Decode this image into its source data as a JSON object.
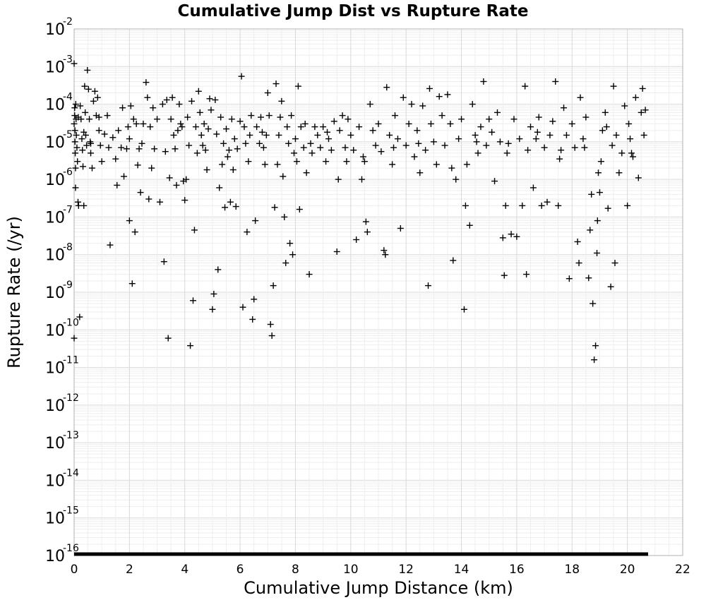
{
  "chart_data": {
    "type": "scatter",
    "title": "Cumulative Jump Dist vs Rupture Rate",
    "xlabel": "Cumulative Jump Distance (km)",
    "ylabel": "Rupture Rate (/yr)",
    "xlim": [
      0,
      22
    ],
    "ylim": [
      1e-16,
      0.01
    ],
    "y_scale": "log",
    "grid": true,
    "marker": "plus",
    "point_color": "#000000",
    "x_ticks": [
      "0",
      "2",
      "4",
      "6",
      "8",
      "10",
      "12",
      "14",
      "16",
      "18",
      "20",
      "22"
    ],
    "y_tick_base": "10",
    "y_tick_exponents": [
      "-2",
      "-3",
      "-4",
      "-5",
      "-6",
      "-7",
      "-8",
      "-9",
      "-10",
      "-11",
      "-12",
      "-13",
      "-14",
      "-15",
      "-16"
    ],
    "floor_line": {
      "y": 1e-16,
      "x_range": [
        0,
        20.75
      ]
    },
    "points": [
      [
        0.0,
        0.0012
      ],
      [
        0.0,
        3e-05
      ],
      [
        0.0,
        6e-11
      ],
      [
        0.02,
        8e-05
      ],
      [
        0.02,
        5e-05
      ],
      [
        0.03,
        2e-05
      ],
      [
        0.03,
        1e-05
      ],
      [
        0.04,
        5e-06
      ],
      [
        0.05,
        2e-06
      ],
      [
        0.05,
        6e-07
      ],
      [
        0.06,
        0.0001
      ],
      [
        0.07,
        4e-05
      ],
      [
        0.08,
        1.5e-05
      ],
      [
        0.1,
        7e-06
      ],
      [
        0.12,
        3e-06
      ],
      [
        0.14,
        2.5e-07
      ],
      [
        0.16,
        2e-07
      ],
      [
        0.2,
        2.2e-10
      ],
      [
        0.22,
        9e-05
      ],
      [
        0.25,
        4e-05
      ],
      [
        0.28,
        1.2e-05
      ],
      [
        0.3,
        6e-06
      ],
      [
        0.32,
        2.2e-06
      ],
      [
        0.35,
        2e-07
      ],
      [
        0.38,
        0.0003
      ],
      [
        0.4,
        6e-05
      ],
      [
        0.42,
        1.5e-05
      ],
      [
        0.45,
        8e-06
      ],
      [
        0.48,
        0.0008
      ],
      [
        0.52,
        0.00025
      ],
      [
        0.55,
        4e-05
      ],
      [
        0.58,
        1e-05
      ],
      [
        0.6,
        5e-06
      ],
      [
        0.65,
        2e-06
      ],
      [
        0.7,
        0.00012
      ],
      [
        0.75,
        0.00022
      ],
      [
        0.8,
        5e-05
      ],
      [
        0.85,
        0.00015
      ],
      [
        0.9,
        2e-05
      ],
      [
        0.95,
        8e-06
      ],
      [
        1.0,
        3e-06
      ],
      [
        1.2,
        5e-05
      ],
      [
        1.25,
        7e-06
      ],
      [
        1.3,
        1.8e-08
      ],
      [
        1.4,
        1.3e-05
      ],
      [
        1.5,
        3.5e-06
      ],
      [
        1.55,
        7e-07
      ],
      [
        1.6,
        2e-05
      ],
      [
        1.7,
        7e-06
      ],
      [
        1.75,
        8e-05
      ],
      [
        1.8,
        1.2e-06
      ],
      [
        1.9,
        6.5e-06
      ],
      [
        1.95,
        2.5e-05
      ],
      [
        2.0,
        1.2e-05
      ],
      [
        2.0,
        8e-08
      ],
      [
        2.05,
        9e-05
      ],
      [
        2.1,
        1.7e-09
      ],
      [
        2.15,
        4e-05
      ],
      [
        2.2,
        4e-08
      ],
      [
        2.25,
        3e-05
      ],
      [
        2.3,
        2.4e-06
      ],
      [
        2.35,
        6.5e-06
      ],
      [
        2.4,
        4.5e-07
      ],
      [
        2.5,
        3e-05
      ],
      [
        2.6,
        0.00038
      ],
      [
        2.65,
        0.00015
      ],
      [
        2.7,
        3e-07
      ],
      [
        2.75,
        2.5e-05
      ],
      [
        2.8,
        2e-06
      ],
      [
        2.85,
        8e-05
      ],
      [
        2.9,
        6.5e-06
      ],
      [
        3.0,
        4e-05
      ],
      [
        3.1,
        2.5e-07
      ],
      [
        3.2,
        0.0001
      ],
      [
        3.25,
        6.5e-09
      ],
      [
        3.3,
        5.5e-06
      ],
      [
        3.35,
        0.00013
      ],
      [
        3.4,
        6e-11
      ],
      [
        3.45,
        1.1e-06
      ],
      [
        3.5,
        4e-05
      ],
      [
        3.55,
        0.00015
      ],
      [
        3.6,
        1.5e-05
      ],
      [
        3.65,
        6.5e-06
      ],
      [
        3.7,
        7e-07
      ],
      [
        3.8,
        0.0001
      ],
      [
        3.85,
        3e-05
      ],
      [
        3.9,
        2.5e-05
      ],
      [
        3.95,
        9e-07
      ],
      [
        4.0,
        2.8e-07
      ],
      [
        4.05,
        1e-06
      ],
      [
        4.1,
        4.5e-05
      ],
      [
        4.15,
        8e-06
      ],
      [
        4.2,
        3.8e-11
      ],
      [
        4.25,
        0.00012
      ],
      [
        4.3,
        6e-10
      ],
      [
        4.35,
        4.5e-08
      ],
      [
        4.4,
        2.5e-05
      ],
      [
        4.45,
        5e-06
      ],
      [
        4.5,
        0.00022
      ],
      [
        4.55,
        6e-05
      ],
      [
        4.6,
        1.5e-05
      ],
      [
        4.7,
        3e-05
      ],
      [
        4.75,
        6e-06
      ],
      [
        4.8,
        1.8e-06
      ],
      [
        4.85,
        2.2e-05
      ],
      [
        4.9,
        0.00014
      ],
      [
        4.95,
        7e-05
      ],
      [
        5.0,
        3.5e-10
      ],
      [
        5.05,
        9e-10
      ],
      [
        5.1,
        0.00013
      ],
      [
        5.15,
        1.6e-05
      ],
      [
        5.2,
        4e-09
      ],
      [
        5.25,
        6e-07
      ],
      [
        5.3,
        4.5e-05
      ],
      [
        5.35,
        2.5e-06
      ],
      [
        5.4,
        9e-06
      ],
      [
        5.45,
        1.8e-07
      ],
      [
        5.5,
        2.2e-05
      ],
      [
        5.6,
        6e-06
      ],
      [
        5.65,
        2.5e-07
      ],
      [
        5.7,
        4e-05
      ],
      [
        5.75,
        1.8e-06
      ],
      [
        5.8,
        1.2e-05
      ],
      [
        5.85,
        1.9e-07
      ],
      [
        5.9,
        6.5e-06
      ],
      [
        6.0,
        3.5e-05
      ],
      [
        6.05,
        0.00055
      ],
      [
        6.1,
        4e-10
      ],
      [
        6.15,
        2.5e-05
      ],
      [
        6.2,
        9e-06
      ],
      [
        6.25,
        4e-08
      ],
      [
        6.3,
        3e-06
      ],
      [
        6.35,
        1.5e-05
      ],
      [
        6.4,
        5e-05
      ],
      [
        6.45,
        1.9e-10
      ],
      [
        6.5,
        6.5e-10
      ],
      [
        6.55,
        8e-08
      ],
      [
        6.6,
        2.5e-05
      ],
      [
        6.7,
        9e-06
      ],
      [
        6.75,
        4.5e-05
      ],
      [
        6.8,
        1.8e-05
      ],
      [
        6.9,
        2.5e-06
      ],
      [
        6.95,
        1.5e-05
      ],
      [
        7.0,
        0.0002
      ],
      [
        7.05,
        5e-05
      ],
      [
        7.1,
        1.4e-10
      ],
      [
        7.15,
        7e-11
      ],
      [
        7.2,
        1.5e-09
      ],
      [
        7.25,
        1.8e-07
      ],
      [
        7.3,
        0.00035
      ],
      [
        7.35,
        2.5e-06
      ],
      [
        7.4,
        1.5e-05
      ],
      [
        7.45,
        4.5e-05
      ],
      [
        7.5,
        0.00012
      ],
      [
        7.55,
        1.2e-06
      ],
      [
        7.6,
        1e-07
      ],
      [
        7.65,
        6e-09
      ],
      [
        7.7,
        2.5e-05
      ],
      [
        7.75,
        9e-06
      ],
      [
        7.8,
        2e-08
      ],
      [
        7.85,
        5e-05
      ],
      [
        7.9,
        1e-08
      ],
      [
        8.0,
        1.2e-05
      ],
      [
        8.05,
        3e-06
      ],
      [
        8.1,
        0.0003
      ],
      [
        8.15,
        1.6e-07
      ],
      [
        8.2,
        2.5e-05
      ],
      [
        8.3,
        7e-06
      ],
      [
        8.35,
        3e-05
      ],
      [
        8.4,
        1.5e-06
      ],
      [
        8.5,
        3e-09
      ],
      [
        8.55,
        9e-06
      ],
      [
        8.6,
        5e-06
      ],
      [
        8.7,
        2.5e-05
      ],
      [
        8.8,
        1.5e-05
      ],
      [
        8.9,
        7e-06
      ],
      [
        9.0,
        2.5e-05
      ],
      [
        9.1,
        3e-06
      ],
      [
        9.2,
        1.2e-05
      ],
      [
        9.3,
        6e-06
      ],
      [
        9.4,
        3.5e-05
      ],
      [
        9.5,
        1.2e-08
      ],
      [
        9.55,
        1e-06
      ],
      [
        9.6,
        2e-05
      ],
      [
        9.7,
        5e-05
      ],
      [
        9.8,
        7e-06
      ],
      [
        9.85,
        3e-06
      ],
      [
        9.9,
        4e-05
      ],
      [
        10.0,
        1.5e-05
      ],
      [
        10.1,
        6e-06
      ],
      [
        10.2,
        2.5e-08
      ],
      [
        10.3,
        2.5e-05
      ],
      [
        10.4,
        1e-06
      ],
      [
        10.5,
        3e-06
      ],
      [
        10.55,
        7.5e-08
      ],
      [
        10.6,
        4e-08
      ],
      [
        10.7,
        0.0001
      ],
      [
        10.8,
        2e-05
      ],
      [
        10.9,
        8e-06
      ],
      [
        11.0,
        3e-05
      ],
      [
        11.1,
        5.5e-06
      ],
      [
        11.2,
        1.3e-08
      ],
      [
        11.25,
        1e-08
      ],
      [
        11.3,
        0.00028
      ],
      [
        11.4,
        1.5e-05
      ],
      [
        11.5,
        2.5e-06
      ],
      [
        11.6,
        5e-05
      ],
      [
        11.7,
        1.2e-05
      ],
      [
        11.8,
        5e-08
      ],
      [
        11.9,
        0.00015
      ],
      [
        12.0,
        8e-06
      ],
      [
        12.1,
        3e-05
      ],
      [
        12.2,
        0.0001
      ],
      [
        12.3,
        4e-06
      ],
      [
        12.4,
        2e-05
      ],
      [
        12.5,
        1.5e-06
      ],
      [
        12.6,
        9e-05
      ],
      [
        12.7,
        6e-06
      ],
      [
        12.8,
        1.5e-09
      ],
      [
        12.85,
        0.00026
      ],
      [
        12.9,
        3e-05
      ],
      [
        13.0,
        1e-05
      ],
      [
        13.1,
        2.5e-06
      ],
      [
        13.2,
        0.00016
      ],
      [
        13.3,
        5e-05
      ],
      [
        13.4,
        8e-06
      ],
      [
        13.5,
        0.00018
      ],
      [
        13.6,
        3e-05
      ],
      [
        13.7,
        7e-09
      ],
      [
        13.8,
        1e-06
      ],
      [
        13.9,
        1.2e-05
      ],
      [
        14.0,
        4e-05
      ],
      [
        14.1,
        3.5e-10
      ],
      [
        14.15,
        2e-07
      ],
      [
        14.2,
        2.5e-06
      ],
      [
        14.3,
        6e-08
      ],
      [
        14.4,
        0.0001
      ],
      [
        14.5,
        1.5e-05
      ],
      [
        14.6,
        5e-06
      ],
      [
        14.7,
        2.5e-05
      ],
      [
        14.8,
        0.0004
      ],
      [
        14.9,
        8e-06
      ],
      [
        15.0,
        4e-05
      ],
      [
        15.1,
        1.8e-05
      ],
      [
        15.2,
        9e-07
      ],
      [
        15.3,
        6e-05
      ],
      [
        15.4,
        1e-05
      ],
      [
        15.5,
        2.8e-08
      ],
      [
        15.55,
        2.8e-09
      ],
      [
        15.6,
        2e-07
      ],
      [
        15.7,
        9e-06
      ],
      [
        15.8,
        3.5e-08
      ],
      [
        15.9,
        4e-05
      ],
      [
        16.0,
        3e-08
      ],
      [
        16.1,
        1.2e-05
      ],
      [
        16.2,
        2e-07
      ],
      [
        16.3,
        0.0003
      ],
      [
        16.35,
        3e-09
      ],
      [
        16.4,
        6e-06
      ],
      [
        16.5,
        2.5e-05
      ],
      [
        16.6,
        6e-07
      ],
      [
        16.7,
        1.2e-05
      ],
      [
        16.8,
        4.5e-05
      ],
      [
        16.9,
        2e-07
      ],
      [
        17.0,
        7e-06
      ],
      [
        17.1,
        2.5e-07
      ],
      [
        17.2,
        1.5e-05
      ],
      [
        17.3,
        3.5e-05
      ],
      [
        17.4,
        0.0004
      ],
      [
        17.5,
        2e-07
      ],
      [
        17.6,
        6e-06
      ],
      [
        17.7,
        8e-05
      ],
      [
        17.8,
        1.5e-05
      ],
      [
        17.9,
        2.3e-09
      ],
      [
        18.0,
        3e-05
      ],
      [
        18.1,
        7e-06
      ],
      [
        18.2,
        2.2e-08
      ],
      [
        18.25,
        6e-09
      ],
      [
        18.3,
        0.00015
      ],
      [
        18.4,
        1.2e-05
      ],
      [
        18.5,
        4.5e-05
      ],
      [
        18.6,
        2.4e-09
      ],
      [
        18.65,
        4.5e-08
      ],
      [
        18.7,
        4e-07
      ],
      [
        18.75,
        5e-10
      ],
      [
        18.8,
        1.6e-11
      ],
      [
        18.85,
        3.8e-11
      ],
      [
        18.9,
        1.1e-08
      ],
      [
        18.92,
        8e-08
      ],
      [
        18.95,
        1.5e-06
      ],
      [
        19.0,
        4.5e-07
      ],
      [
        19.05,
        3e-06
      ],
      [
        19.1,
        2e-05
      ],
      [
        19.2,
        6e-05
      ],
      [
        19.3,
        1.7e-07
      ],
      [
        19.4,
        1.4e-09
      ],
      [
        19.45,
        8e-06
      ],
      [
        19.5,
        0.0003
      ],
      [
        19.55,
        6e-09
      ],
      [
        19.6,
        1.5e-05
      ],
      [
        19.7,
        1.5e-06
      ],
      [
        19.8,
        5e-06
      ],
      [
        19.9,
        9e-05
      ],
      [
        20.0,
        2e-07
      ],
      [
        20.05,
        3e-05
      ],
      [
        20.1,
        1.2e-05
      ],
      [
        20.2,
        4e-06
      ],
      [
        20.3,
        0.00015
      ],
      [
        20.4,
        1.1e-06
      ],
      [
        20.5,
        6e-05
      ],
      [
        20.55,
        0.00026
      ],
      [
        20.6,
        1.5e-05
      ],
      [
        20.65,
        7e-05
      ],
      [
        0.15,
        4.5e-05
      ],
      [
        0.35,
        1.8e-05
      ],
      [
        0.6,
        9e-06
      ],
      [
        0.9,
        4.5e-05
      ],
      [
        1.1,
        1.6e-05
      ],
      [
        2.45,
        9e-06
      ],
      [
        3.75,
        2e-05
      ],
      [
        4.65,
        8e-06
      ],
      [
        5.55,
        4e-06
      ],
      [
        6.85,
        7e-06
      ],
      [
        7.95,
        5e-06
      ],
      [
        9.15,
        1.8e-05
      ],
      [
        10.45,
        4e-06
      ],
      [
        11.55,
        7e-06
      ],
      [
        12.45,
        9e-06
      ],
      [
        13.65,
        2e-06
      ],
      [
        14.55,
        1e-05
      ],
      [
        15.65,
        5e-06
      ],
      [
        16.75,
        1.8e-05
      ],
      [
        17.55,
        3.5e-06
      ],
      [
        18.45,
        7e-06
      ],
      [
        19.25,
        2.5e-05
      ],
      [
        20.15,
        5e-06
      ]
    ]
  }
}
